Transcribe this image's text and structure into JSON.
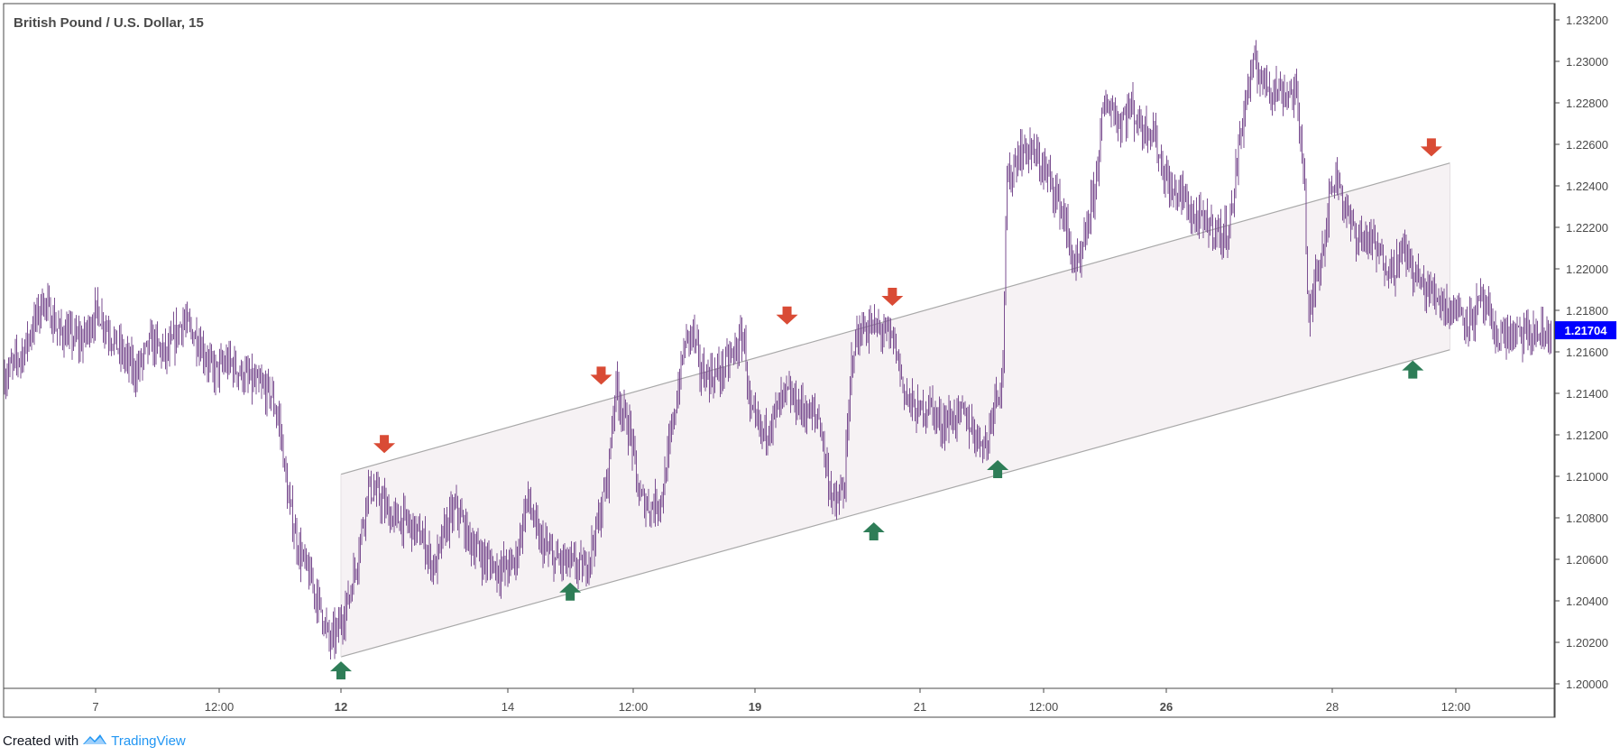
{
  "chart_data": {
    "type": "candlestick",
    "title": "British Pound / U.S. Dollar, 15",
    "current_price": "1.21704",
    "y_axis": {
      "ylim": [
        1.1995,
        1.232
      ],
      "tick_labels": [
        "1.20000",
        "1.20200",
        "1.20400",
        "1.20600",
        "1.20800",
        "1.21000",
        "1.21200",
        "1.21400",
        "1.21600",
        "1.21800",
        "1.22000",
        "1.22200",
        "1.22400",
        "1.22600",
        "1.22800",
        "1.23000",
        "1.23200"
      ]
    },
    "x_axis": {
      "tick_labels": [
        {
          "label": "7",
          "bold": false
        },
        {
          "label": "12:00",
          "bold": false
        },
        {
          "label": "12",
          "bold": true
        },
        {
          "label": "14",
          "bold": false
        },
        {
          "label": "12:00",
          "bold": false
        },
        {
          "label": "19",
          "bold": true
        },
        {
          "label": "21",
          "bold": false
        },
        {
          "label": "12:00",
          "bold": false
        },
        {
          "label": "26",
          "bold": true
        },
        {
          "label": "28",
          "bold": false
        },
        {
          "label": "12:00",
          "bold": false
        }
      ]
    },
    "price_path": [
      [
        0,
        1.2148
      ],
      [
        0.012,
        1.216
      ],
      [
        0.025,
        1.2185
      ],
      [
        0.035,
        1.217
      ],
      [
        0.05,
        1.2165
      ],
      [
        0.06,
        1.218
      ],
      [
        0.075,
        1.216
      ],
      [
        0.085,
        1.215
      ],
      [
        0.095,
        1.2165
      ],
      [
        0.105,
        1.2158
      ],
      [
        0.115,
        1.2175
      ],
      [
        0.125,
        1.2166
      ],
      [
        0.135,
        1.215
      ],
      [
        0.145,
        1.2155
      ],
      [
        0.16,
        1.2145
      ],
      [
        0.172,
        1.214
      ],
      [
        0.178,
        1.2125
      ],
      [
        0.183,
        1.209
      ],
      [
        0.19,
        1.2065
      ],
      [
        0.198,
        1.205
      ],
      [
        0.205,
        1.2035
      ],
      [
        0.21,
        1.202
      ],
      [
        0.215,
        1.2025
      ],
      [
        0.222,
        1.204
      ],
      [
        0.228,
        1.206
      ],
      [
        0.235,
        1.2095
      ],
      [
        0.242,
        1.209
      ],
      [
        0.25,
        1.208
      ],
      [
        0.26,
        1.2078
      ],
      [
        0.27,
        1.207
      ],
      [
        0.278,
        1.2055
      ],
      [
        0.285,
        1.2075
      ],
      [
        0.292,
        1.2085
      ],
      [
        0.3,
        1.207
      ],
      [
        0.31,
        1.206
      ],
      [
        0.32,
        1.2055
      ],
      [
        0.33,
        1.2058
      ],
      [
        0.338,
        1.209
      ],
      [
        0.345,
        1.207
      ],
      [
        0.355,
        1.206
      ],
      [
        0.365,
        1.2058
      ],
      [
        0.375,
        1.2055
      ],
      [
        0.383,
        1.2075
      ],
      [
        0.39,
        1.21
      ],
      [
        0.395,
        1.2145
      ],
      [
        0.4,
        1.213
      ],
      [
        0.405,
        1.212
      ],
      [
        0.41,
        1.209
      ],
      [
        0.418,
        1.2085
      ],
      [
        0.425,
        1.209
      ],
      [
        0.432,
        1.2125
      ],
      [
        0.44,
        1.2165
      ],
      [
        0.445,
        1.217
      ],
      [
        0.45,
        1.215
      ],
      [
        0.458,
        1.2148
      ],
      [
        0.465,
        1.2152
      ],
      [
        0.472,
        1.216
      ],
      [
        0.478,
        1.2168
      ],
      [
        0.482,
        1.213
      ],
      [
        0.49,
        1.212
      ],
      [
        0.498,
        1.213
      ],
      [
        0.505,
        1.214
      ],
      [
        0.512,
        1.2135
      ],
      [
        0.52,
        1.213
      ],
      [
        0.527,
        1.2128
      ],
      [
        0.532,
        1.21
      ],
      [
        0.537,
        1.2085
      ],
      [
        0.543,
        1.2095
      ],
      [
        0.548,
        1.216
      ],
      [
        0.553,
        1.217
      ],
      [
        0.56,
        1.2172
      ],
      [
        0.568,
        1.217
      ],
      [
        0.575,
        1.2165
      ],
      [
        0.582,
        1.214
      ],
      [
        0.59,
        1.213
      ],
      [
        0.598,
        1.2135
      ],
      [
        0.605,
        1.2125
      ],
      [
        0.612,
        1.2128
      ],
      [
        0.62,
        1.213
      ],
      [
        0.628,
        1.212
      ],
      [
        0.635,
        1.2115
      ],
      [
        0.64,
        1.214
      ],
      [
        0.645,
        1.2145
      ],
      [
        0.648,
        1.224
      ],
      [
        0.655,
        1.2255
      ],
      [
        0.662,
        1.2258
      ],
      [
        0.67,
        1.225
      ],
      [
        0.678,
        1.224
      ],
      [
        0.685,
        1.2225
      ],
      [
        0.69,
        1.2205
      ],
      [
        0.695,
        1.22
      ],
      [
        0.7,
        1.222
      ],
      [
        0.705,
        1.224
      ],
      [
        0.71,
        1.2275
      ],
      [
        0.715,
        1.228
      ],
      [
        0.72,
        1.227
      ],
      [
        0.728,
        1.2278
      ],
      [
        0.735,
        1.2268
      ],
      [
        0.742,
        1.2268
      ],
      [
        0.748,
        1.225
      ],
      [
        0.755,
        1.2235
      ],
      [
        0.76,
        1.2238
      ],
      [
        0.768,
        1.2225
      ],
      [
        0.775,
        1.2222
      ],
      [
        0.782,
        1.222
      ],
      [
        0.788,
        1.2215
      ],
      [
        0.793,
        1.2225
      ],
      [
        0.798,
        1.226
      ],
      [
        0.803,
        1.2285
      ],
      [
        0.808,
        1.2298
      ],
      [
        0.815,
        1.229
      ],
      [
        0.822,
        1.2286
      ],
      [
        0.83,
        1.2285
      ],
      [
        0.835,
        1.2284
      ],
      [
        0.84,
        1.225
      ],
      [
        0.843,
        1.217
      ],
      [
        0.847,
        1.2195
      ],
      [
        0.852,
        1.221
      ],
      [
        0.858,
        1.224
      ],
      [
        0.862,
        1.2245
      ],
      [
        0.868,
        1.2225
      ],
      [
        0.875,
        1.2215
      ],
      [
        0.882,
        1.2215
      ],
      [
        0.89,
        1.2205
      ],
      [
        0.898,
        1.22
      ],
      [
        0.905,
        1.221
      ],
      [
        0.91,
        1.22
      ],
      [
        0.918,
        1.219
      ],
      [
        0.925,
        1.2188
      ],
      [
        0.932,
        1.2182
      ],
      [
        0.94,
        1.218
      ],
      [
        0.948,
        1.2175
      ],
      [
        0.955,
        1.2185
      ],
      [
        0.96,
        1.2175
      ],
      [
        0.963,
        1.2168
      ]
    ],
    "channel": {
      "upper": [
        [
          12,
          1.2101
        ],
        [
          29.9,
          1.2251
        ]
      ],
      "lower": [
        [
          12,
          1.2013
        ],
        [
          29.9,
          1.2161
        ]
      ]
    },
    "markers": [
      {
        "kind": "up",
        "at": [
          12.0,
          1.2013
        ]
      },
      {
        "kind": "down",
        "at": [
          12.7,
          1.2109
        ]
      },
      {
        "kind": "up",
        "at": [
          15.7,
          1.2051
        ]
      },
      {
        "kind": "down",
        "at": [
          16.2,
          1.2142
        ]
      },
      {
        "kind": "down",
        "at": [
          19.2,
          1.2171
        ]
      },
      {
        "kind": "up",
        "at": [
          20.6,
          1.208
        ]
      },
      {
        "kind": "down",
        "at": [
          20.9,
          1.218
        ]
      },
      {
        "kind": "up",
        "at": [
          22.6,
          1.211
        ]
      },
      {
        "kind": "up",
        "at": [
          29.3,
          1.2158
        ]
      },
      {
        "kind": "down",
        "at": [
          29.6,
          1.2252
        ]
      }
    ],
    "colors": {
      "candle": "#7b4f91",
      "up_marker": "#2e7d57",
      "down_marker": "#d94b35",
      "channel_fill": "#f6f2f4",
      "channel_line": "#a9a9a9",
      "price_label_bg": "#0000ff"
    }
  },
  "footer": {
    "prefix": "Created with",
    "brand": "TradingView"
  }
}
